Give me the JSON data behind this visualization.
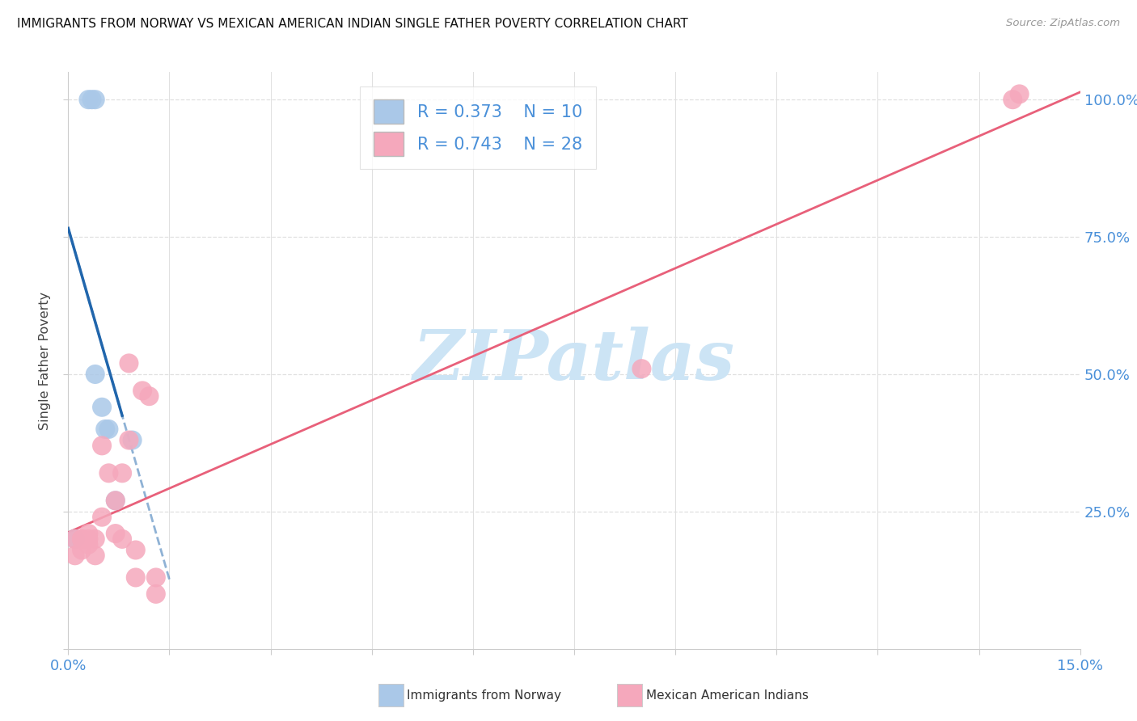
{
  "title": "IMMIGRANTS FROM NORWAY VS MEXICAN AMERICAN INDIAN SINGLE FATHER POVERTY CORRELATION CHART",
  "source": "Source: ZipAtlas.com",
  "ylabel": "Single Father Poverty",
  "xmin": 0.0,
  "xmax": 0.15,
  "ymin": 0.0,
  "ymax": 1.05,
  "norway_R": 0.373,
  "norway_N": 10,
  "mexican_R": 0.743,
  "mexican_N": 28,
  "norway_color": "#aac8e8",
  "norway_line_color": "#2166ac",
  "mexican_color": "#f5a8bc",
  "mexican_line_color": "#e8607a",
  "norway_x": [
    0.001,
    0.003,
    0.0035,
    0.004,
    0.004,
    0.005,
    0.0055,
    0.006,
    0.007,
    0.0095
  ],
  "norway_y": [
    0.2,
    1.0,
    1.0,
    1.0,
    0.5,
    0.44,
    0.4,
    0.4,
    0.27,
    0.38
  ],
  "mexican_x": [
    0.001,
    0.001,
    0.002,
    0.002,
    0.002,
    0.003,
    0.003,
    0.003,
    0.004,
    0.004,
    0.005,
    0.005,
    0.006,
    0.007,
    0.007,
    0.008,
    0.008,
    0.009,
    0.009,
    0.01,
    0.01,
    0.011,
    0.012,
    0.013,
    0.013,
    0.085,
    0.14,
    0.141
  ],
  "mexican_y": [
    0.2,
    0.17,
    0.18,
    0.2,
    0.2,
    0.19,
    0.2,
    0.21,
    0.2,
    0.17,
    0.37,
    0.24,
    0.32,
    0.21,
    0.27,
    0.32,
    0.2,
    0.52,
    0.38,
    0.13,
    0.18,
    0.47,
    0.46,
    0.13,
    0.1,
    0.51,
    1.0,
    1.01
  ],
  "background_color": "#ffffff",
  "watermark": "ZIPatlas",
  "watermark_color": "#cce4f5",
  "dot_size": 300,
  "grid_color": "#e0e0e0",
  "tick_label_color": "#4a90d9",
  "legend_text_color": "#4a90d9"
}
